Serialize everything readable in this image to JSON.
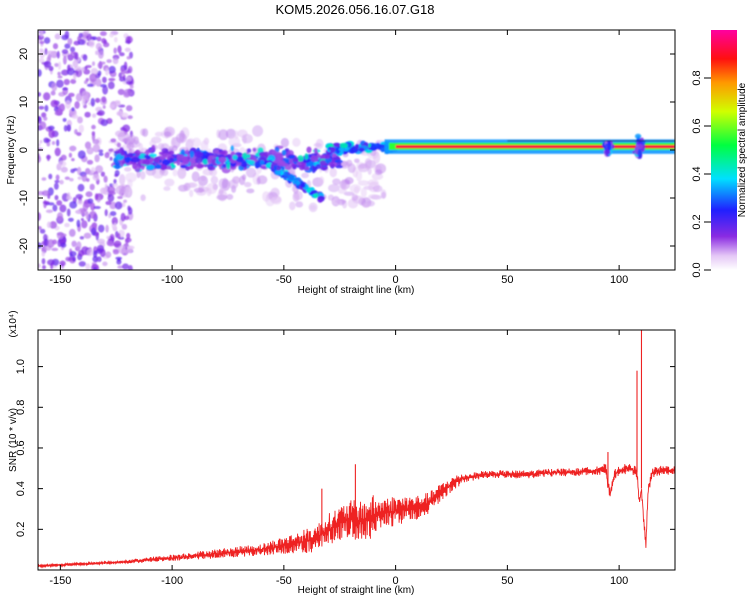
{
  "title": "KOM5.2026.056.16.07.G18",
  "chart_data": [
    {
      "type": "heatmap",
      "name": "spectrogram",
      "xlabel": "Height of straight line (km)",
      "ylabel": "Frequency (Hz)",
      "xlim": [
        -160,
        125
      ],
      "ylim": [
        -25,
        25
      ],
      "xticks": [
        -150,
        -100,
        -50,
        0,
        50,
        100
      ],
      "yticks": [
        -20,
        -10,
        0,
        10,
        20
      ],
      "colorbar": {
        "label": "Normalized spectral amplitude",
        "range": [
          0.0,
          1.0
        ],
        "ticks": [
          0.0,
          0.2,
          0.4,
          0.6,
          0.8
        ],
        "tick_labels": [
          "0.0",
          "0.2",
          "0.4",
          "0.6",
          "0.8"
        ],
        "colormap": "rainbow (white to violet to blue to cyan to green to yellow to red to magenta)"
      },
      "features": [
        {
          "name": "noise scatter",
          "x_range": [
            -160,
            -120
          ],
          "y_range": [
            -25,
            25
          ]
        },
        {
          "name": "diffuse band",
          "x_range": [
            -125,
            -25
          ],
          "y_range": [
            -8,
            4
          ]
        },
        {
          "name": "descending streak",
          "x_range": [
            -60,
            -33
          ],
          "y_start": -2,
          "y_end": -10
        },
        {
          "name": "narrow carrier line",
          "x_range": [
            -5,
            125
          ],
          "y_center": 0.7,
          "amplitude": 1.0
        },
        {
          "name": "disturbance",
          "x_range": [
            92,
            98
          ]
        },
        {
          "name": "disturbance",
          "x_range": [
            106,
            113
          ]
        }
      ]
    },
    {
      "type": "line",
      "name": "snr",
      "xlabel": "Height of straight line (km)",
      "ylabel": "SNR (10 * v/v)",
      "y_multiplier_label": "(x10⁴)",
      "xlim": [
        -160,
        125
      ],
      "ylim": [
        0.0,
        1.18
      ],
      "xticks": [
        -150,
        -100,
        -50,
        0,
        50,
        100
      ],
      "yticks": [
        0.2,
        0.4,
        0.6,
        0.8,
        1.0
      ],
      "color": "#ee2222",
      "series": [
        {
          "name": "SNR",
          "x": [
            -160,
            -140,
            -120,
            -110,
            -100,
            -90,
            -80,
            -70,
            -60,
            -50,
            -40,
            -35,
            -30,
            -25,
            -20,
            -15,
            -10,
            -5,
            0,
            5,
            10,
            15,
            20,
            25,
            30,
            35,
            40,
            50,
            60,
            70,
            80,
            90,
            94,
            95,
            96,
            98,
            100,
            105,
            108,
            109,
            110,
            111,
            112,
            113,
            115,
            120,
            125
          ],
          "y": [
            0.02,
            0.03,
            0.04,
            0.05,
            0.06,
            0.07,
            0.08,
            0.09,
            0.1,
            0.12,
            0.14,
            0.16,
            0.2,
            0.23,
            0.25,
            0.24,
            0.26,
            0.28,
            0.29,
            0.3,
            0.31,
            0.33,
            0.38,
            0.42,
            0.45,
            0.46,
            0.47,
            0.47,
            0.47,
            0.48,
            0.48,
            0.49,
            0.5,
            0.42,
            0.37,
            0.47,
            0.49,
            0.5,
            0.48,
            0.33,
            0.4,
            0.25,
            0.12,
            0.4,
            0.48,
            0.49,
            0.49
          ]
        }
      ],
      "spikes": [
        {
          "x": -18,
          "y": 0.52
        },
        {
          "x": -33,
          "y": 0.4
        },
        {
          "x": 95,
          "y": 0.58
        },
        {
          "x": 108,
          "y": 0.98
        },
        {
          "x": 110,
          "y": 1.18
        }
      ]
    }
  ]
}
